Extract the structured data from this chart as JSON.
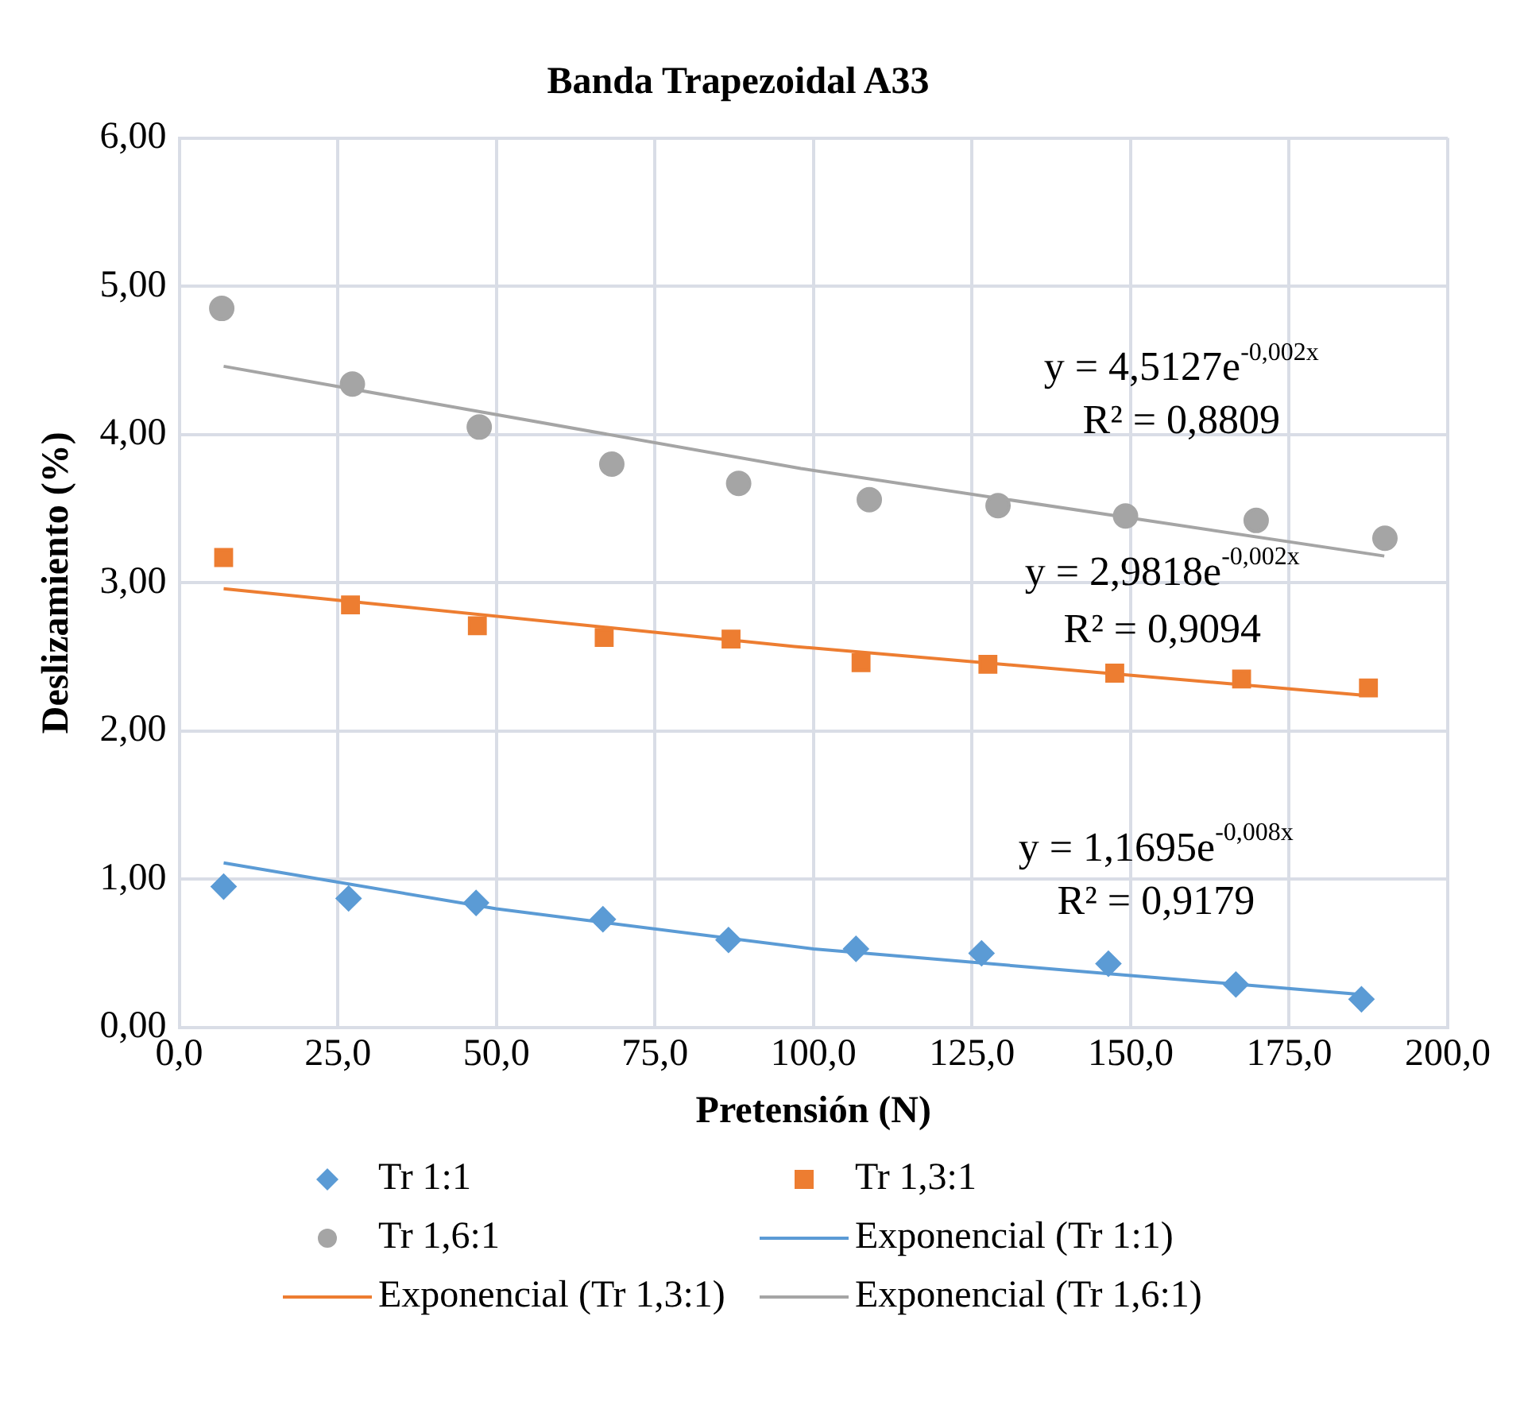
{
  "chart_data": {
    "type": "scatter",
    "title": "Banda Trapezoidal A33",
    "xlabel": "Pretensión (N)",
    "ylabel": "Deslizamiento (%)",
    "xlim": [
      0,
      200
    ],
    "xticks": [
      {
        "value": 0,
        "label": "0,0"
      },
      {
        "value": 25,
        "label": "25,0"
      },
      {
        "value": 50,
        "label": "50,0"
      },
      {
        "value": 75,
        "label": "75,0"
      },
      {
        "value": 100,
        "label": "100,0"
      },
      {
        "value": 125,
        "label": "125,0"
      },
      {
        "value": 150,
        "label": "150,0"
      },
      {
        "value": 175,
        "label": "175,0"
      },
      {
        "value": 200,
        "label": "200,0"
      }
    ],
    "ylim": [
      0,
      6
    ],
    "yticks": [
      {
        "value": 0,
        "label": "0,00"
      },
      {
        "value": 1,
        "label": "1,00"
      },
      {
        "value": 2,
        "label": "2,00"
      },
      {
        "value": 3,
        "label": "3,00"
      },
      {
        "value": 4,
        "label": "4,00"
      },
      {
        "value": 5,
        "label": "5,00"
      },
      {
        "value": 6,
        "label": "6,00"
      }
    ],
    "grid": true,
    "legend": "bottom",
    "annotations": [
      "y = 4,5127e$^{-0,002x}$",
      "R² = 0,8809",
      "y = 2,9818e$^{-0,002x}$",
      "R² = 0,9094",
      "y = 1,1695e$^{-0,008x}$",
      "R² = 0,9179"
    ],
    "series": [
      {
        "name": "Tr 1:1",
        "type": "scatter",
        "marker": "diamond",
        "color": "#5b9bd5",
        "x": [
          7,
          26.7,
          46.8,
          66.8,
          86.6,
          106.7,
          126.5,
          146.5,
          166.6,
          186.4
        ],
        "values": [
          0.95,
          0.87,
          0.84,
          0.73,
          0.59,
          0.53,
          0.5,
          0.43,
          0.29,
          0.19
        ]
      },
      {
        "name": "Tr 1,3:1",
        "type": "scatter",
        "marker": "square",
        "color": "#ed7d31",
        "x": [
          7,
          27,
          47,
          67,
          87,
          107.5,
          127.5,
          147.5,
          167.5,
          187.5
        ],
        "values": [
          3.17,
          2.85,
          2.71,
          2.63,
          2.62,
          2.46,
          2.45,
          2.39,
          2.35,
          2.29
        ]
      },
      {
        "name": "Tr 1,6:1",
        "type": "scatter",
        "marker": "circle",
        "color": "#a5a5a5",
        "x": [
          6.7,
          27.3,
          47.3,
          68.2,
          88.2,
          108.8,
          129.1,
          149.2,
          169.8,
          190.1
        ],
        "values": [
          4.85,
          4.34,
          4.05,
          3.8,
          3.67,
          3.56,
          3.52,
          3.45,
          3.42,
          3.3
        ]
      },
      {
        "name": "Exponencial (Tr 1:1)",
        "type": "line",
        "marker": "none",
        "color": "#5b9bd5",
        "x": [
          7,
          50,
          100,
          150,
          187
        ],
        "values": [
          1.11,
          0.8,
          0.53,
          0.35,
          0.22
        ]
      },
      {
        "name": "Exponencial (Tr 1,3:1)",
        "type": "line",
        "marker": "none",
        "color": "#ed7d31",
        "x": [
          7,
          97,
          187
        ],
        "values": [
          2.96,
          2.57,
          2.24
        ]
      },
      {
        "name": "Exponencial (Tr 1,6:1)",
        "type": "line",
        "marker": "none",
        "color": "#a5a5a5",
        "x": [
          7,
          98,
          190
        ],
        "values": [
          4.46,
          3.77,
          3.18
        ]
      }
    ]
  }
}
